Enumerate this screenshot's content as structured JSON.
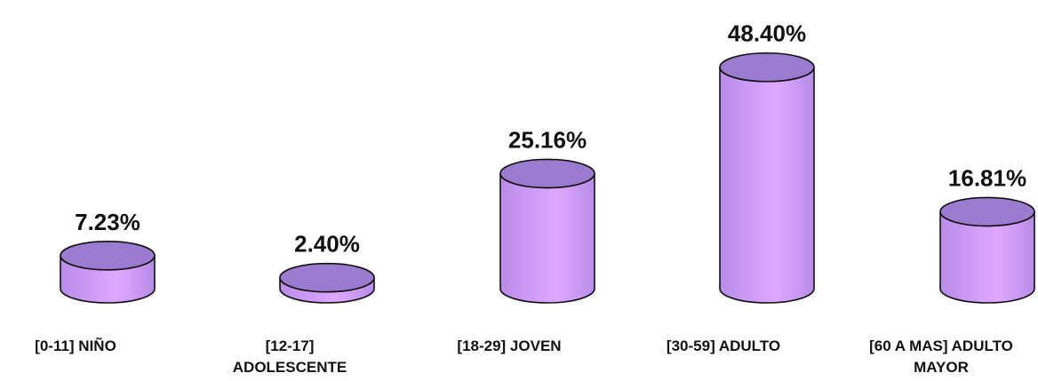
{
  "chart_data": {
    "type": "bar",
    "style": "3d-cylinder",
    "categories": [
      "[0-11] NIÑO",
      "[12-17]\nADOLESCENTE",
      "[18-29] JOVEN",
      "[30-59] ADULTO",
      "[60 A MAS] ADULTO\nMAYOR"
    ],
    "values": [
      7.23,
      2.4,
      25.16,
      48.4,
      16.81
    ],
    "value_labels": [
      "7.23%",
      "2.40%",
      "25.16%",
      "48.40%",
      "16.81%"
    ],
    "title": "",
    "xlabel": "",
    "ylabel": "",
    "ylim": [
      0,
      50
    ],
    "grid": false,
    "legend": "none",
    "colors": {
      "body_edge": "#b88ce8",
      "body_center": "#e0a8ff",
      "top": "#9b7bd0",
      "outline": "#111111",
      "label": "#111111"
    }
  }
}
